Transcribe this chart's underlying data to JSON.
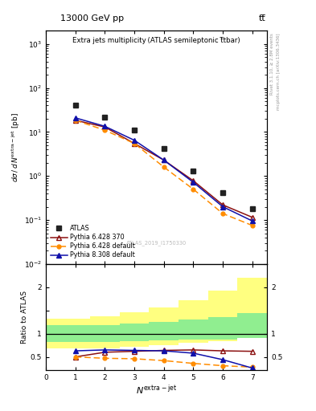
{
  "title_top": "13000 GeV pp",
  "title_top_right": "tt̅",
  "plot_title": "Extra jets multiplicity (ATLAS semileptonic t̅tbar)",
  "watermark": "ATLAS_2019_I1750330",
  "right_label_top": "Rivet 3.1.10, ≥ 2.8M events",
  "right_label_bottom": "mcplots.cern.ch [arXiv:1306.3436]",
  "xlabel": "$N^{\\mathrm{extra-jet}}$",
  "ylabel": "$d\\sigma\\,/\\,d\\,N^{\\mathrm{extra-jet}}$ [pb]",
  "ylabel_ratio": "Ratio to ATLAS",
  "atlas_x": [
    1,
    2,
    3,
    4,
    5,
    6,
    7
  ],
  "atlas_y": [
    40,
    22,
    11,
    4.2,
    1.3,
    0.42,
    0.18
  ],
  "py6_370_x": [
    1,
    2,
    3,
    4,
    5,
    6,
    7
  ],
  "py6_370_y": [
    18.5,
    13,
    5.5,
    2.3,
    0.78,
    0.22,
    0.115
  ],
  "py6_def_x": [
    1,
    2,
    3,
    4,
    5,
    6,
    7
  ],
  "py6_def_y": [
    18.5,
    11,
    5.5,
    1.6,
    0.5,
    0.14,
    0.075
  ],
  "py8_def_x": [
    1,
    2,
    3,
    4,
    5,
    6,
    7
  ],
  "py8_def_y": [
    21,
    13.5,
    6.5,
    2.3,
    0.72,
    0.2,
    0.095
  ],
  "ratio_py6_370_x": [
    1,
    2,
    3,
    4,
    5,
    6,
    7
  ],
  "ratio_py6_370_y": [
    0.5,
    0.6,
    0.62,
    0.64,
    0.65,
    0.63,
    0.62
  ],
  "ratio_py6_def_x": [
    1,
    2,
    3,
    4,
    5,
    6,
    7
  ],
  "ratio_py6_def_y": [
    0.5,
    0.47,
    0.46,
    0.42,
    0.36,
    0.31,
    0.28
  ],
  "ratio_py8_def_x": [
    1,
    2,
    3,
    4,
    5,
    6,
    7
  ],
  "ratio_py8_def_y": [
    0.63,
    0.65,
    0.64,
    0.63,
    0.58,
    0.44,
    0.26
  ],
  "band_x_edges": [
    0.0,
    1.5,
    2.5,
    3.5,
    4.5,
    5.5,
    6.5,
    7.5
  ],
  "band_green_low": [
    0.82,
    0.82,
    0.84,
    0.85,
    0.87,
    0.88,
    0.9
  ],
  "band_green_high": [
    1.18,
    1.18,
    1.22,
    1.26,
    1.3,
    1.36,
    1.44
  ],
  "band_yellow_low": [
    0.68,
    0.68,
    0.72,
    0.76,
    0.8,
    0.84,
    0.9
  ],
  "band_yellow_high": [
    1.32,
    1.38,
    1.46,
    1.56,
    1.72,
    1.92,
    2.2
  ],
  "color_atlas": "#222222",
  "color_py6_370": "#8B1010",
  "color_py6_def": "#FF8C00",
  "color_py8_def": "#1010AA",
  "color_green": "#90EE90",
  "color_yellow": "#FFFF80",
  "ylim_main": [
    0.01,
    2000
  ],
  "ylim_ratio": [
    0.22,
    2.5
  ],
  "xlim_main": [
    0.0,
    7.5
  ],
  "xlim_ratio": [
    0.0,
    7.5
  ]
}
